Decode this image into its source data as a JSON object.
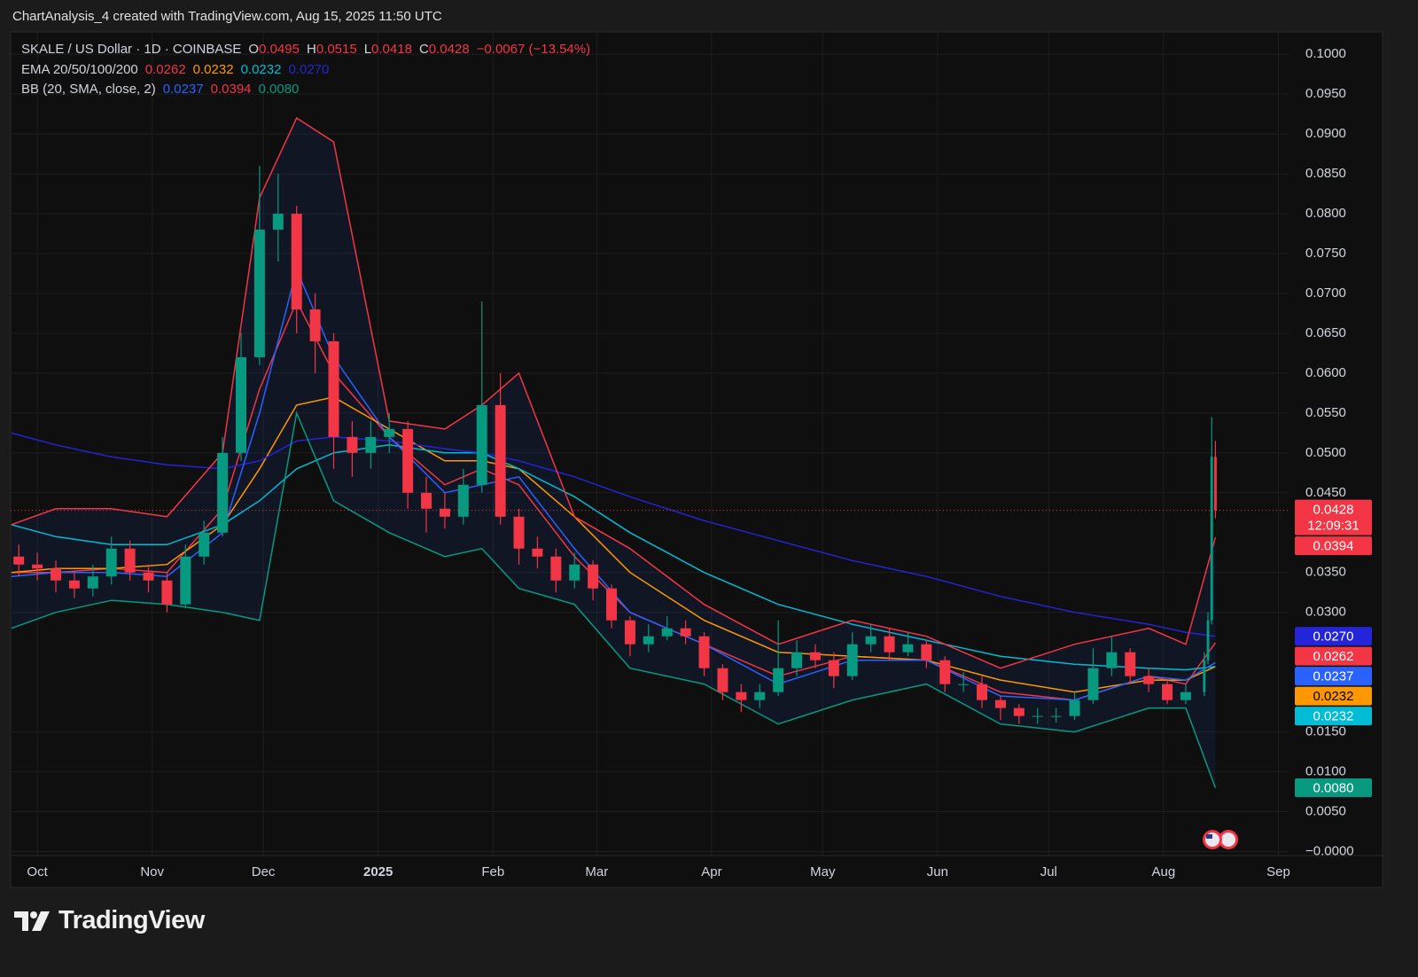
{
  "header": {
    "text": "ChartAnalysis_4 created with TradingView.com, Aug 15, 2025 11:50 UTC"
  },
  "footer": {
    "logo": "TradingView"
  },
  "chart_data": {
    "type": "candlestick",
    "title": "SKALE / US Dollar · 1D · COINBASE",
    "ohlc_labels": [
      "O",
      "H",
      "L",
      "C"
    ],
    "change": "−0.0067 (−13.54%)",
    "change_color": "#f23645",
    "up_color": "#089981",
    "down_color": "#f23645",
    "last_price_countdown": "12:09:31",
    "x": [
      -5,
      0,
      5,
      10,
      15,
      20,
      25,
      30,
      35,
      40,
      45,
      50,
      55,
      60,
      65,
      70,
      75,
      80,
      85,
      90,
      95,
      100,
      105,
      110,
      115,
      120,
      125,
      130,
      135,
      140,
      145,
      150,
      155,
      160,
      165,
      170,
      175,
      180,
      185,
      190,
      195,
      200,
      205,
      210,
      215,
      220,
      225,
      230,
      235,
      240,
      245,
      250,
      255,
      260,
      265,
      270,
      275,
      280,
      285,
      290,
      295,
      300,
      305,
      310,
      315,
      316,
      317,
      318
    ],
    "open": [
      0.037,
      0.036,
      0.0355,
      0.034,
      0.033,
      0.0345,
      0.038,
      0.035,
      0.034,
      0.031,
      0.037,
      0.04,
      0.05,
      0.062,
      0.078,
      0.08,
      0.068,
      0.064,
      0.052,
      0.05,
      0.052,
      0.053,
      0.045,
      0.043,
      0.042,
      0.046,
      0.056,
      0.042,
      0.038,
      0.037,
      0.034,
      0.036,
      0.033,
      0.029,
      0.026,
      0.027,
      0.028,
      0.027,
      0.023,
      0.02,
      0.019,
      0.02,
      0.023,
      0.025,
      0.024,
      0.022,
      0.026,
      0.027,
      0.025,
      0.026,
      0.024,
      0.021,
      0.021,
      0.019,
      0.018,
      0.017,
      0.017,
      0.017,
      0.019,
      0.023,
      0.025,
      0.022,
      0.021,
      0.019,
      0.02,
      0.024,
      0.029,
      0.0495
    ],
    "high": [
      0.0385,
      0.0375,
      0.0365,
      0.035,
      0.036,
      0.0395,
      0.039,
      0.036,
      0.035,
      0.0385,
      0.0415,
      0.052,
      0.065,
      0.086,
      0.085,
      0.081,
      0.07,
      0.065,
      0.054,
      0.054,
      0.055,
      0.054,
      0.047,
      0.045,
      0.048,
      0.069,
      0.06,
      0.043,
      0.0395,
      0.038,
      0.0375,
      0.0365,
      0.0335,
      0.0295,
      0.0285,
      0.0295,
      0.029,
      0.0275,
      0.0235,
      0.021,
      0.021,
      0.029,
      0.0265,
      0.026,
      0.025,
      0.0275,
      0.0285,
      0.028,
      0.0275,
      0.0265,
      0.0245,
      0.0225,
      0.022,
      0.0195,
      0.0185,
      0.018,
      0.018,
      0.02,
      0.0255,
      0.027,
      0.0255,
      0.023,
      0.0215,
      0.021,
      0.025,
      0.03,
      0.0545,
      0.0515
    ],
    "low": [
      0.0345,
      0.034,
      0.0325,
      0.0318,
      0.032,
      0.0335,
      0.034,
      0.0325,
      0.03,
      0.0305,
      0.036,
      0.0395,
      0.049,
      0.061,
      0.074,
      0.065,
      0.06,
      0.048,
      0.047,
      0.048,
      0.05,
      0.043,
      0.04,
      0.0405,
      0.041,
      0.045,
      0.041,
      0.036,
      0.0355,
      0.0325,
      0.033,
      0.0315,
      0.028,
      0.0245,
      0.025,
      0.0265,
      0.026,
      0.022,
      0.019,
      0.0175,
      0.018,
      0.0195,
      0.022,
      0.023,
      0.0205,
      0.0215,
      0.025,
      0.024,
      0.0245,
      0.023,
      0.02,
      0.02,
      0.018,
      0.0165,
      0.016,
      0.016,
      0.0162,
      0.0165,
      0.0185,
      0.022,
      0.021,
      0.02,
      0.0185,
      0.0185,
      0.0195,
      0.0235,
      0.0285,
      0.0418
    ],
    "close": [
      0.036,
      0.0355,
      0.034,
      0.033,
      0.0345,
      0.038,
      0.035,
      0.034,
      0.031,
      0.037,
      0.04,
      0.05,
      0.062,
      0.078,
      0.08,
      0.068,
      0.064,
      0.052,
      0.05,
      0.052,
      0.053,
      0.045,
      0.043,
      0.042,
      0.046,
      0.056,
      0.042,
      0.038,
      0.037,
      0.034,
      0.036,
      0.033,
      0.029,
      0.026,
      0.027,
      0.028,
      0.027,
      0.023,
      0.02,
      0.019,
      0.02,
      0.023,
      0.025,
      0.024,
      0.022,
      0.026,
      0.027,
      0.025,
      0.026,
      0.024,
      0.021,
      0.021,
      0.019,
      0.018,
      0.017,
      0.017,
      0.017,
      0.019,
      0.023,
      0.025,
      0.022,
      0.021,
      0.019,
      0.02,
      0.024,
      0.029,
      0.0495,
      0.0428
    ],
    "line_x": [
      -7,
      5,
      20,
      35,
      50,
      60,
      70,
      80,
      95,
      110,
      120,
      130,
      145,
      160,
      180,
      200,
      220,
      240,
      260,
      280,
      300,
      310,
      318
    ],
    "indicators": [
      {
        "type": "ema",
        "label": "EMA 20/50/100/200",
        "items": [
          {
            "value_label": "0.0262",
            "color": "#f23645",
            "values": [
              0.035,
              0.035,
              0.0355,
              0.035,
              0.043,
              0.058,
              0.069,
              0.06,
              0.052,
              0.046,
              0.048,
              0.046,
              0.037,
              0.03,
              0.026,
              0.022,
              0.0245,
              0.024,
              0.02,
              0.019,
              0.022,
              0.021,
              0.0262
            ]
          },
          {
            "value_label": "0.0232",
            "color": "#ff9800",
            "values": [
              0.035,
              0.0355,
              0.0355,
              0.036,
              0.041,
              0.048,
              0.056,
              0.057,
              0.053,
              0.049,
              0.049,
              0.048,
              0.042,
              0.035,
              0.029,
              0.025,
              0.0245,
              0.024,
              0.0215,
              0.02,
              0.0215,
              0.0215,
              0.0232
            ]
          },
          {
            "value_label": "0.0232",
            "color": "#00bcd4",
            "values": [
              0.041,
              0.0395,
              0.0385,
              0.0385,
              0.041,
              0.044,
              0.048,
              0.05,
              0.051,
              0.05,
              0.05,
              0.048,
              0.0445,
              0.04,
              0.035,
              0.031,
              0.0285,
              0.0265,
              0.0245,
              0.0235,
              0.023,
              0.0228,
              0.0232
            ]
          },
          {
            "value_label": "0.0270",
            "color": "#2424d8",
            "values": [
              0.0525,
              0.051,
              0.0495,
              0.0485,
              0.048,
              0.049,
              0.0515,
              0.052,
              0.0515,
              0.0505,
              0.05,
              0.049,
              0.047,
              0.0445,
              0.0415,
              0.039,
              0.0365,
              0.0345,
              0.032,
              0.03,
              0.0285,
              0.0275,
              0.027
            ]
          }
        ]
      },
      {
        "type": "bb",
        "label": "BB (20, SMA, close, 2)",
        "fill": "rgba(41,98,255,0.09)",
        "items": [
          {
            "value_label": "0.0237",
            "color": "#2962ff",
            "values": [
              0.0345,
              0.035,
              0.035,
              0.0345,
              0.04,
              0.055,
              0.073,
              0.062,
              0.052,
              0.045,
              0.046,
              0.047,
              0.038,
              0.03,
              0.026,
              0.021,
              0.024,
              0.024,
              0.0195,
              0.019,
              0.022,
              0.0215,
              0.0237
            ]
          },
          {
            "value_label": "0.0394",
            "color": "#f23645",
            "values": [
              0.041,
              0.043,
              0.043,
              0.042,
              0.05,
              0.082,
              0.092,
              0.089,
              0.054,
              0.053,
              0.056,
              0.06,
              0.042,
              0.038,
              0.031,
              0.026,
              0.029,
              0.027,
              0.023,
              0.026,
              0.028,
              0.026,
              0.0394
            ]
          },
          {
            "value_label": "0.0080",
            "color": "#089981",
            "values": [
              0.028,
              0.03,
              0.0315,
              0.031,
              0.03,
              0.029,
              0.055,
              0.044,
              0.04,
              0.037,
              0.038,
              0.033,
              0.031,
              0.023,
              0.021,
              0.016,
              0.019,
              0.021,
              0.016,
              0.015,
              0.018,
              0.018,
              0.008
            ]
          }
        ]
      }
    ],
    "xlim": [
      -7.2,
      338
    ],
    "xticks": [
      {
        "value": 0,
        "label": "Oct"
      },
      {
        "value": 31,
        "label": "Nov"
      },
      {
        "value": 61,
        "label": "Dec"
      },
      {
        "value": 92,
        "label": "2025",
        "bold": true
      },
      {
        "value": 123,
        "label": "Feb"
      },
      {
        "value": 151,
        "label": "Mar"
      },
      {
        "value": 182,
        "label": "Apr"
      },
      {
        "value": 212,
        "label": "May"
      },
      {
        "value": 243,
        "label": "Jun"
      },
      {
        "value": 273,
        "label": "Jul"
      },
      {
        "value": 304,
        "label": "Aug"
      },
      {
        "value": 335,
        "label": "Sep"
      }
    ],
    "ylim": [
      -0.0005,
      0.1028
    ],
    "yticks": [
      {
        "value": 0.1,
        "label": "0.1000"
      },
      {
        "value": 0.095,
        "label": "0.0950"
      },
      {
        "value": 0.09,
        "label": "0.0900"
      },
      {
        "value": 0.085,
        "label": "0.0850"
      },
      {
        "value": 0.08,
        "label": "0.0800"
      },
      {
        "value": 0.075,
        "label": "0.0750"
      },
      {
        "value": 0.07,
        "label": "0.0700"
      },
      {
        "value": 0.065,
        "label": "0.0650"
      },
      {
        "value": 0.06,
        "label": "0.0600"
      },
      {
        "value": 0.055,
        "label": "0.0550"
      },
      {
        "value": 0.05,
        "label": "0.0500"
      },
      {
        "value": 0.045,
        "label": "0.0450"
      },
      {
        "value": 0.035,
        "label": "0.0350"
      },
      {
        "value": 0.03,
        "label": "0.0300"
      },
      {
        "value": 0.015,
        "label": "0.0150"
      },
      {
        "value": 0.01,
        "label": "0.0100"
      },
      {
        "value": 0.005,
        "label": "0.0050"
      },
      {
        "value": 0,
        "label": "−0.0000"
      }
    ],
    "grid": true
  }
}
